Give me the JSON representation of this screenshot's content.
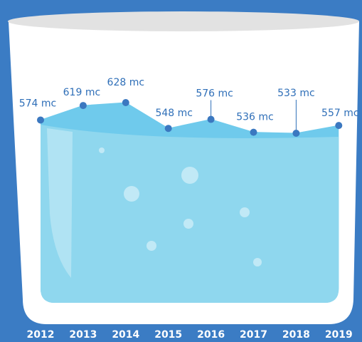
{
  "chart_data": {
    "type": "line",
    "categories": [
      "2012",
      "2013",
      "2014",
      "2015",
      "2016",
      "2017",
      "2018",
      "2019"
    ],
    "values": [
      574,
      619,
      628,
      548,
      576,
      536,
      533,
      557
    ],
    "value_labels": [
      "574 mc",
      "619 mc",
      "628 mc",
      "548 mc",
      "576 mc",
      "536 mc",
      "533 mc",
      "557 mc"
    ],
    "color": "#3b78c0"
  }
}
